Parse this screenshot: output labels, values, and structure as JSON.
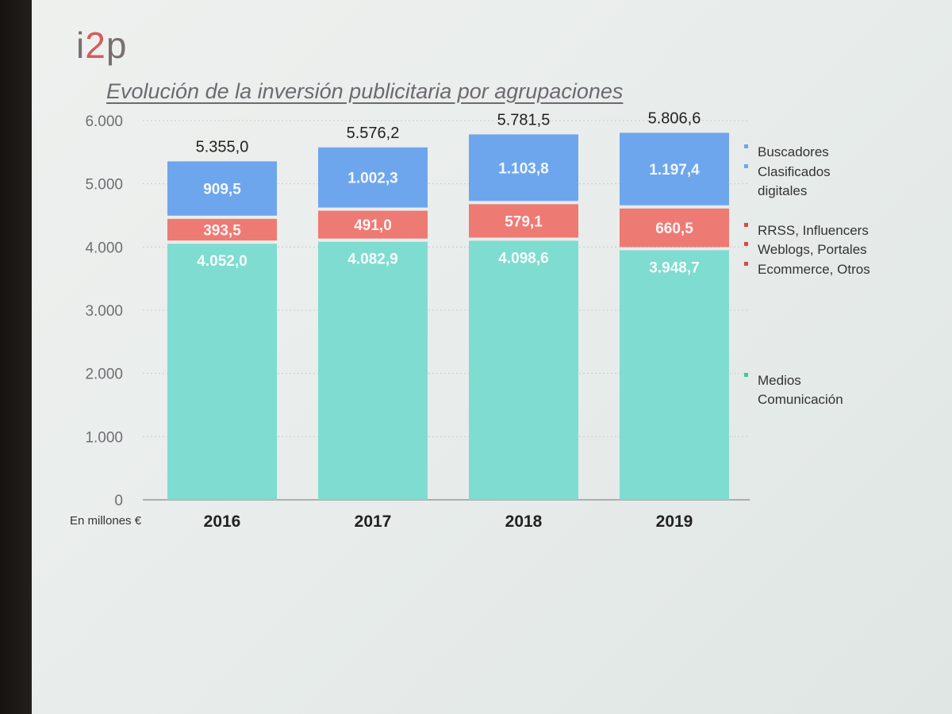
{
  "logo": {
    "text_a": "i",
    "text_b": "2",
    "text_c": "p"
  },
  "title": "Evolución de la inversión publicitaria por agrupaciones",
  "unit_label": "En millones €",
  "colors": {
    "medios": "#7fdcd0",
    "rrss": "#ee7a74",
    "buscadores": "#6ea6ee",
    "grid": "#c8cccc"
  },
  "legend": [
    {
      "lines": [
        "Buscadores"
      ],
      "color": "#6ea6ee"
    },
    {
      "lines": [
        "Clasificados",
        "digitales"
      ],
      "color": "#6ea6ee"
    },
    {
      "lines": [
        "RRSS, Influencers"
      ],
      "color": "#d84a4a"
    },
    {
      "lines": [
        "Weblogs, Portales"
      ],
      "color": "#d84a4a"
    },
    {
      "lines": [
        "Ecommerce, Otros"
      ],
      "color": "#d84a4a"
    },
    {
      "lines": [
        "Medios",
        "Comunicación"
      ],
      "color": "#3fc9a6"
    }
  ],
  "chart_data": {
    "type": "bar",
    "stacked": true,
    "title": "Evolución de la inversión publicitaria por agrupaciones",
    "ylabel": "",
    "unit": "En millones €",
    "ylim": [
      0,
      6000
    ],
    "yticks": [
      0,
      1000,
      2000,
      3000,
      4000,
      5000,
      6000
    ],
    "ytick_labels": [
      "0",
      "1.000",
      "2.000",
      "3.000",
      "4.000",
      "5.000",
      "6.000"
    ],
    "categories": [
      "2016",
      "2017",
      "2018",
      "2019"
    ],
    "series": [
      {
        "values": [
          4052.0,
          4082.9,
          4098.6,
          3948.7
        ],
        "labels": [
          "4.052,0",
          "4.082,9",
          "4.098,6",
          "3.948,7"
        ],
        "color": "#7fdcd0"
      },
      {
        "values": [
          393.5,
          491.0,
          579.1,
          660.5
        ],
        "labels": [
          "393,5",
          "491,0",
          "579,1",
          "660,5"
        ],
        "color": "#ee7a74"
      },
      {
        "values": [
          909.5,
          1002.3,
          1103.8,
          1197.4
        ],
        "labels": [
          "909,5",
          "1.002,3",
          "1.103,8",
          "1.197,4"
        ],
        "color": "#6ea6ee"
      }
    ],
    "totals": [
      5355.0,
      5576.2,
      5781.5,
      5806.6
    ],
    "total_labels": [
      "5.355,0",
      "5.576,2",
      "5.781,5",
      "5.806,6"
    ],
    "grid": true,
    "legend_position": "right"
  }
}
